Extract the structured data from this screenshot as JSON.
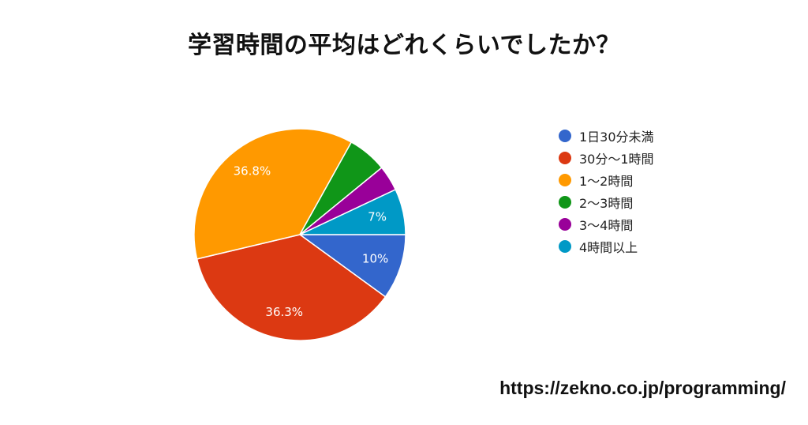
{
  "title": "学習時間の平均はどれくらいでしたか？",
  "footer": {
    "url": "https://zekno.co.jp/programming/"
  },
  "chart_data": {
    "type": "pie",
    "title": "学習時間の平均はどれくらいでしたか？",
    "legend_position": "right",
    "start_angle": "3 o'clock",
    "direction": "clockwise",
    "slices": [
      {
        "label": "1日30分未満",
        "value": 10.0,
        "data_label": "10%",
        "color": "#3366cc"
      },
      {
        "label": "30分〜1時間",
        "value": 36.3,
        "data_label": "36.3%",
        "color": "#dc3912"
      },
      {
        "label": "1〜2時間",
        "value": 36.8,
        "data_label": "36.8%",
        "color": "#ff9900"
      },
      {
        "label": "2〜3時間",
        "value": 6.0,
        "data_label": "",
        "color": "#109618"
      },
      {
        "label": "3〜4時間",
        "value": 3.9,
        "data_label": "",
        "color": "#990099"
      },
      {
        "label": "4時間以上",
        "value": 7.0,
        "data_label": "7%",
        "color": "#0099c6"
      }
    ]
  }
}
